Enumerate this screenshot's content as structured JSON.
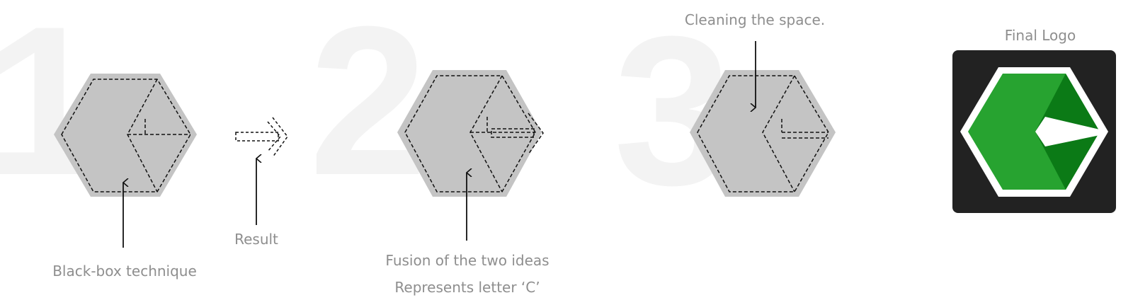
{
  "steps": [
    {
      "number": "1",
      "caption": "Black-box technique",
      "arrow_caption": "Result"
    },
    {
      "number": "2",
      "caption_line1": "Fusion of the two ideas",
      "caption_line2": "Represents letter ‘C’"
    },
    {
      "number": "3",
      "caption": "Cleaning the space."
    }
  ],
  "final": {
    "title": "Final Logo"
  },
  "colors": {
    "hexagon_fill": "#c4c4c4",
    "big_number": "#f3f3f3",
    "caption_text": "#8e8e8e",
    "logo_background": "#222222",
    "logo_green_light": "#27a330",
    "logo_green_dark": "#0b7a16",
    "logo_outline": "#ffffff"
  }
}
